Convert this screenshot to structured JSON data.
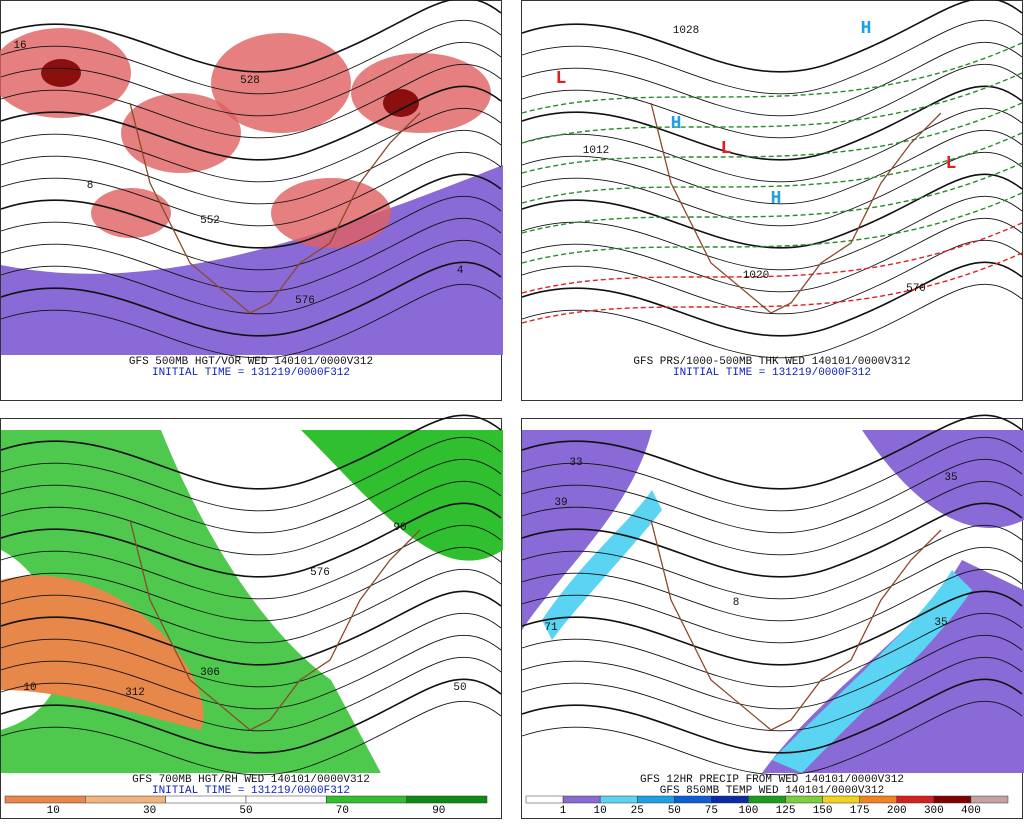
{
  "panels": [
    {
      "caption": [
        "GFS 500MB HGT/VOR WED 140101/0000V312",
        "INITIAL TIME = 131219/0000F312"
      ],
      "labels": [
        "576",
        "528",
        "552",
        "16",
        "8",
        "4"
      ]
    },
    {
      "caption": [
        "GFS PRS/1000-500MB THK WED 140101/0000V312",
        "INITIAL TIME = 131219/0000F312"
      ],
      "labels": [
        "L",
        "H",
        "L",
        "H",
        "1012",
        "1020",
        "570",
        "1028",
        "H",
        "L"
      ]
    },
    {
      "caption": [
        "GFS 700MB HGT/RH WED 140101/0000V312",
        "INITIAL TIME = 131219/0000F312"
      ],
      "labels": [
        "312",
        "306",
        "10",
        "50",
        "90",
        "576"
      ],
      "colorbar": {
        "colors": [
          "#e8874a",
          "#f4b27c",
          "#ffffff",
          "#ffffff",
          "#2fbf2f",
          "#0b8c12"
        ],
        "labels": [
          "10",
          "30",
          "50",
          "70",
          "90"
        ]
      }
    },
    {
      "caption": [
        "GFS 12HR PRECIP FROM WED 140101/0000V312",
        "GFS 850MB TEMP WED 140101/0000V312"
      ],
      "labels": [
        "35",
        "33",
        "39",
        "71",
        "35",
        "8"
      ],
      "colorbar": {
        "colors": [
          "#ffffff",
          "#8a6ad6",
          "#5ad4f2",
          "#1ea0e4",
          "#0c5ed4",
          "#0b2aa4",
          "#1c9c1c",
          "#7cce3c",
          "#f2d21e",
          "#f28220",
          "#d22020",
          "#800000",
          "#c4a2a2"
        ],
        "labels": [
          "1",
          "10",
          "25",
          "50",
          "75",
          "100",
          "125",
          "150",
          "175",
          "200",
          "300",
          "400"
        ]
      }
    }
  ]
}
